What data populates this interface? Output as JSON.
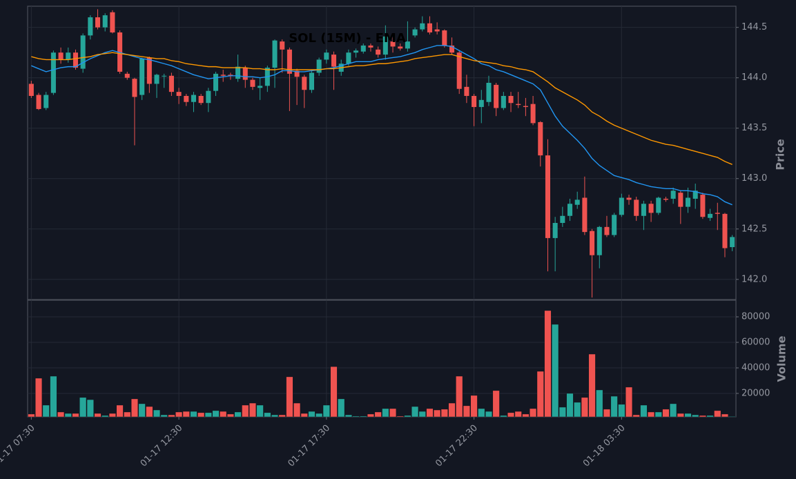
{
  "chart_data": [
    {
      "type": "candlestick",
      "title": "SOL (15M) - EMA",
      "ylabel": "Price",
      "up_color": "#26a69a",
      "down_color": "#ef5350",
      "grid": true,
      "categories": [
        "01-17 07:30",
        null,
        null,
        null,
        null,
        null,
        null,
        null,
        null,
        null,
        null,
        null,
        null,
        null,
        null,
        null,
        null,
        null,
        null,
        null,
        "01-17 12:30",
        null,
        null,
        null,
        null,
        null,
        null,
        null,
        null,
        null,
        null,
        null,
        null,
        null,
        null,
        null,
        null,
        null,
        null,
        null,
        "01-17 17:30",
        null,
        null,
        null,
        null,
        null,
        null,
        null,
        null,
        null,
        null,
        null,
        null,
        null,
        null,
        null,
        null,
        null,
        null,
        null,
        "01-17 22:30",
        null,
        null,
        null,
        null,
        null,
        null,
        null,
        null,
        null,
        null,
        null,
        null,
        null,
        null,
        null,
        null,
        null,
        null,
        null,
        "01-18 03:30",
        null,
        null,
        null,
        null,
        null,
        null,
        null,
        null,
        null,
        null,
        null,
        null,
        null,
        null,
        null
      ],
      "open": [
        143.94,
        143.83,
        143.7,
        143.85,
        144.25,
        144.18,
        144.25,
        144.09,
        144.42,
        144.6,
        144.5,
        144.65,
        144.45,
        144.04,
        143.99,
        143.83,
        144.2,
        143.94,
        144.02,
        144.02,
        143.86,
        143.82,
        143.76,
        143.82,
        143.75,
        143.87,
        144.03,
        144.03,
        143.99,
        144.1,
        143.98,
        143.9,
        143.92,
        144.1,
        144.36,
        144.28,
        144.07,
        144.01,
        143.88,
        144.05,
        144.18,
        144.23,
        144.06,
        144.14,
        144.25,
        144.26,
        144.32,
        144.28,
        144.23,
        144.36,
        144.31,
        144.29,
        144.42,
        144.48,
        144.54,
        144.48,
        144.47,
        144.32,
        144.25,
        143.91,
        143.82,
        143.71,
        143.76,
        143.93,
        143.7,
        143.82,
        143.74,
        143.72,
        143.74,
        143.56,
        143.23,
        142.41,
        142.56,
        142.63,
        142.74,
        142.81,
        142.48,
        142.24,
        142.52,
        142.44,
        142.64,
        142.81,
        142.79,
        142.63,
        142.75,
        142.66,
        142.8,
        142.8,
        142.86,
        142.72,
        142.8,
        142.84,
        142.61,
        142.66,
        142.65,
        142.32
      ],
      "high": [
        143.97,
        143.85,
        143.86,
        144.27,
        144.3,
        144.3,
        144.28,
        144.44,
        144.62,
        144.68,
        144.64,
        144.67,
        144.47,
        144.06,
        144.0,
        144.2,
        144.21,
        144.04,
        144.04,
        144.05,
        143.9,
        143.84,
        143.86,
        143.84,
        143.9,
        144.06,
        144.08,
        144.05,
        144.23,
        144.12,
        144.0,
        144.0,
        144.12,
        144.38,
        144.38,
        144.3,
        144.09,
        144.03,
        144.08,
        144.2,
        144.28,
        144.26,
        144.18,
        144.28,
        144.29,
        144.34,
        144.34,
        144.31,
        144.52,
        144.4,
        144.34,
        144.56,
        144.5,
        144.61,
        144.61,
        144.55,
        144.48,
        144.4,
        144.27,
        144.03,
        143.84,
        143.88,
        144.02,
        143.95,
        143.86,
        143.86,
        143.86,
        143.8,
        143.82,
        143.57,
        143.39,
        142.62,
        142.72,
        142.8,
        142.87,
        143.02,
        142.5,
        142.53,
        142.63,
        142.66,
        142.85,
        142.84,
        142.82,
        142.78,
        142.78,
        142.82,
        142.82,
        142.91,
        142.88,
        142.91,
        142.95,
        142.86,
        142.7,
        142.76,
        142.66,
        142.44
      ],
      "low": [
        143.8,
        143.68,
        143.68,
        143.83,
        144.14,
        144.15,
        144.08,
        144.05,
        144.38,
        144.48,
        144.46,
        144.44,
        144.04,
        143.98,
        143.33,
        143.78,
        143.85,
        143.8,
        143.9,
        143.82,
        143.74,
        143.72,
        143.66,
        143.73,
        143.66,
        143.82,
        143.96,
        143.98,
        143.96,
        143.9,
        143.88,
        143.78,
        143.86,
        143.9,
        144.05,
        143.67,
        143.73,
        143.7,
        143.85,
        144.02,
        144.14,
        143.88,
        144.02,
        144.12,
        144.2,
        144.24,
        144.26,
        144.2,
        144.18,
        144.25,
        144.27,
        144.26,
        144.4,
        144.46,
        144.43,
        144.43,
        144.3,
        144.23,
        143.84,
        143.75,
        143.52,
        143.55,
        143.72,
        143.62,
        143.68,
        143.66,
        143.7,
        143.62,
        143.53,
        143.12,
        142.08,
        142.08,
        142.52,
        142.58,
        142.7,
        142.44,
        141.82,
        142.11,
        142.42,
        142.42,
        142.62,
        142.74,
        142.58,
        142.49,
        142.57,
        142.64,
        142.77,
        142.75,
        142.55,
        142.66,
        142.7,
        142.6,
        142.58,
        142.49,
        142.22,
        142.28
      ],
      "close": [
        143.82,
        143.69,
        143.83,
        144.25,
        144.18,
        144.25,
        144.1,
        144.42,
        144.6,
        144.5,
        144.62,
        144.45,
        144.06,
        144.0,
        143.81,
        144.19,
        143.94,
        144.03,
        144.02,
        143.86,
        143.82,
        143.76,
        143.83,
        143.75,
        143.87,
        144.04,
        144.02,
        144.02,
        144.11,
        143.98,
        143.91,
        143.92,
        144.1,
        144.37,
        144.28,
        144.04,
        144.01,
        143.88,
        144.05,
        144.18,
        144.25,
        144.11,
        144.14,
        144.25,
        144.27,
        144.32,
        144.3,
        144.23,
        144.41,
        144.31,
        144.29,
        144.36,
        144.48,
        144.54,
        144.45,
        144.46,
        144.32,
        144.25,
        143.89,
        143.82,
        143.71,
        143.78,
        143.95,
        143.7,
        143.82,
        143.75,
        143.73,
        143.71,
        143.55,
        143.23,
        142.41,
        142.56,
        142.63,
        142.75,
        142.79,
        142.47,
        142.24,
        142.52,
        142.44,
        142.64,
        142.81,
        142.79,
        142.63,
        142.75,
        142.66,
        142.81,
        142.79,
        142.88,
        142.72,
        142.81,
        142.88,
        142.62,
        142.65,
        142.65,
        142.31,
        142.42
      ],
      "series": [
        {
          "color": "#2196f3",
          "values": [
            144.12,
            144.09,
            144.06,
            144.08,
            144.1,
            144.11,
            144.11,
            144.15,
            144.19,
            144.22,
            144.25,
            144.27,
            144.25,
            144.23,
            144.21,
            144.19,
            144.18,
            144.16,
            144.14,
            144.12,
            144.09,
            144.06,
            144.03,
            144.01,
            143.99,
            144.0,
            144.01,
            144.02,
            144.02,
            144.01,
            144.01,
            144.0,
            144.01,
            144.03,
            144.07,
            144.07,
            144.06,
            144.06,
            144.07,
            144.08,
            144.09,
            144.1,
            144.12,
            144.14,
            144.16,
            144.16,
            144.16,
            144.18,
            144.19,
            144.2,
            144.21,
            144.23,
            144.25,
            144.28,
            144.3,
            144.32,
            144.32,
            144.31,
            144.27,
            144.23,
            144.19,
            144.14,
            144.12,
            144.08,
            144.06,
            144.03,
            144.0,
            143.97,
            143.94,
            143.88,
            143.75,
            143.62,
            143.52,
            143.45,
            143.38,
            143.3,
            143.2,
            143.13,
            143.08,
            143.03,
            143.01,
            142.99,
            142.96,
            142.94,
            142.92,
            142.91,
            142.9,
            142.9,
            142.88,
            142.88,
            142.87,
            142.85,
            142.84,
            142.82,
            142.77,
            142.74
          ]
        },
        {
          "color": "#ff9800",
          "values": [
            144.21,
            144.19,
            144.18,
            144.18,
            144.18,
            144.18,
            144.19,
            144.2,
            144.21,
            144.23,
            144.24,
            144.25,
            144.24,
            144.23,
            144.22,
            144.21,
            144.2,
            144.19,
            144.19,
            144.17,
            144.16,
            144.14,
            144.13,
            144.12,
            144.11,
            144.11,
            144.1,
            144.1,
            144.1,
            144.1,
            144.09,
            144.09,
            144.08,
            144.08,
            144.09,
            144.08,
            144.08,
            144.08,
            144.08,
            144.08,
            144.09,
            144.09,
            144.1,
            144.11,
            144.12,
            144.12,
            144.13,
            144.14,
            144.14,
            144.15,
            144.16,
            144.17,
            144.19,
            144.2,
            144.21,
            144.22,
            144.23,
            144.23,
            144.21,
            144.19,
            144.17,
            144.16,
            144.15,
            144.14,
            144.12,
            144.11,
            144.09,
            144.08,
            144.06,
            144.01,
            143.96,
            143.9,
            143.86,
            143.82,
            143.78,
            143.73,
            143.66,
            143.62,
            143.57,
            143.53,
            143.5,
            143.47,
            143.44,
            143.41,
            143.38,
            143.36,
            143.34,
            143.33,
            143.31,
            143.29,
            143.27,
            143.25,
            143.23,
            143.21,
            143.17,
            143.14
          ]
        }
      ],
      "ylim": [
        141.8,
        144.71
      ],
      "yticks": [
        {
          "value": 142,
          "label": "142.0"
        },
        142.5,
        {
          "value": 143,
          "label": "143.0"
        },
        143.5,
        {
          "value": 144,
          "label": "144.0"
        },
        144.5
      ]
    },
    {
      "type": "bar",
      "ylabel": "Volume",
      "grid": true,
      "values": [
        3800,
        31900,
        10800,
        33500,
        5400,
        4300,
        4300,
        16800,
        15100,
        4300,
        2700,
        4300,
        10800,
        5400,
        15700,
        11900,
        9700,
        7000,
        3200,
        3200,
        5400,
        5900,
        5900,
        4900,
        4900,
        6500,
        5900,
        3800,
        5400,
        10800,
        12400,
        10800,
        4900,
        3200,
        3200,
        33000,
        12400,
        4300,
        5900,
        4300,
        10800,
        41000,
        15700,
        3200,
        2200,
        2200,
        3800,
        5400,
        8100,
        8100,
        2200,
        2700,
        9700,
        5900,
        8100,
        7000,
        7600,
        12400,
        33500,
        10300,
        18400,
        8100,
        5900,
        22200,
        2700,
        4900,
        5900,
        3800,
        8100,
        37300,
        84900,
        74100,
        9200,
        20000,
        13000,
        16800,
        50800,
        22700,
        7600,
        17800,
        11400,
        24900,
        3200,
        10800,
        5400,
        5400,
        7600,
        11900,
        4300,
        4300,
        3200,
        2700,
        2700,
        6500,
        3800,
        2000
      ],
      "ylim": [
        1600,
        93000
      ],
      "yticks": [
        20000,
        40000,
        60000,
        80000
      ]
    }
  ]
}
